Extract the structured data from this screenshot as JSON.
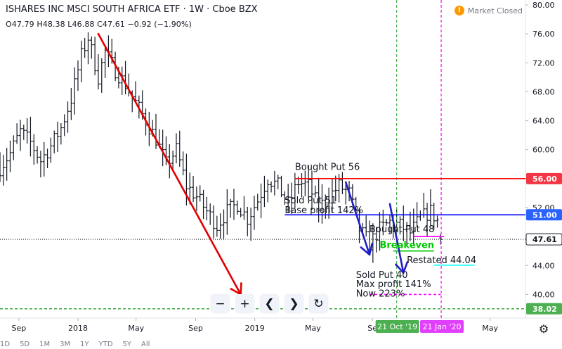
{
  "header": {
    "title": "ISHARES INC MSCI SOUTH AFRICA ETF · 1W · Cboe BZX",
    "ohlc_text": "O47.79  H48.38  L46.88  C47.61  −0.92 (−1.90%)",
    "market_status": "Market Closed",
    "market_icon": "!"
  },
  "colors": {
    "bar": "#131722",
    "red_line": "#ff0000",
    "blue_line": "#0000ff",
    "trend_red": "#e00000",
    "trend_blue": "#1e1ec8",
    "green": "#00c800",
    "cyan": "#00ffff",
    "magenta": "#ff00ff",
    "dashed_green": "#4caf50",
    "tag_red": "#f23645",
    "tag_blue": "#2962ff",
    "tag_gray": "#131722",
    "tag_green": "#4caf50",
    "tag_magenta": "#e040fb"
  },
  "toolbar": {
    "zoom_out": "−",
    "zoom_in": "+",
    "scroll_left": "❮",
    "scroll_right": "❯",
    "reset": "↻"
  },
  "settings_icon": "⚙",
  "bottom_bar": {
    "ranges": [
      "1D",
      "5D",
      "1M",
      "3M",
      "1Y",
      "YTD",
      "5Y",
      "All"
    ]
  },
  "chart_data": {
    "type": "ohlc",
    "interval": "1W",
    "y_axis": {
      "min": 38,
      "max": 80,
      "ticks": [
        80,
        76,
        72,
        68,
        64,
        60,
        56,
        52,
        48,
        44,
        40
      ]
    },
    "x_axis": {
      "start": "2017-07-24",
      "end": "2020-07-13",
      "ticks": [
        {
          "label": "Sep",
          "date": "2017-09-01"
        },
        {
          "label": "2018",
          "date": "2018-01-01"
        },
        {
          "label": "May",
          "date": "2018-05-01"
        },
        {
          "label": "Sep",
          "date": "2018-09-01"
        },
        {
          "label": "2019",
          "date": "2019-01-01"
        },
        {
          "label": "May",
          "date": "2019-05-01"
        },
        {
          "label": "Se",
          "date": "2019-09-01"
        },
        {
          "label": "May",
          "date": "2020-05-01"
        }
      ]
    },
    "last_close": 47.61,
    "series": [
      {
        "kind": "price-path",
        "points": [
          [
            "2017-07-24",
            57.5
          ],
          [
            "2017-08-14",
            59.5
          ],
          [
            "2017-09-04",
            62.5
          ],
          [
            "2017-09-25",
            61.0
          ],
          [
            "2017-10-16",
            58.5
          ],
          [
            "2017-11-06",
            60.5
          ],
          [
            "2017-11-27",
            63.0
          ],
          [
            "2017-12-18",
            67.0
          ],
          [
            "2018-01-08",
            73.0
          ],
          [
            "2018-01-22",
            75.5
          ],
          [
            "2018-02-12",
            70.0
          ],
          [
            "2018-02-26",
            73.5
          ],
          [
            "2018-03-19",
            71.0
          ],
          [
            "2018-04-09",
            69.0
          ],
          [
            "2018-04-30",
            66.5
          ],
          [
            "2018-05-21",
            64.0
          ],
          [
            "2018-06-11",
            61.5
          ],
          [
            "2018-07-02",
            58.0
          ],
          [
            "2018-07-23",
            60.0
          ],
          [
            "2018-08-13",
            55.0
          ],
          [
            "2018-09-03",
            53.5
          ],
          [
            "2018-09-24",
            51.5
          ],
          [
            "2018-10-15",
            49.5
          ],
          [
            "2018-11-05",
            51.5
          ],
          [
            "2018-11-26",
            52.5
          ],
          [
            "2018-12-17",
            50.5
          ],
          [
            "2019-01-07",
            53.0
          ],
          [
            "2019-01-28",
            56.0
          ],
          [
            "2019-02-18",
            55.0
          ],
          [
            "2019-03-11",
            52.5
          ],
          [
            "2019-04-01",
            55.5
          ],
          [
            "2019-04-22",
            55.0
          ],
          [
            "2019-05-13",
            52.0
          ],
          [
            "2019-06-03",
            53.5
          ],
          [
            "2019-06-24",
            55.0
          ],
          [
            "2019-07-15",
            54.0
          ],
          [
            "2019-08-05",
            49.0
          ],
          [
            "2019-08-26",
            47.0
          ],
          [
            "2019-09-16",
            49.0
          ],
          [
            "2019-10-07",
            50.0
          ],
          [
            "2019-10-28",
            49.5
          ],
          [
            "2019-11-18",
            48.5
          ],
          [
            "2019-12-09",
            50.5
          ],
          [
            "2019-12-30",
            51.5
          ],
          [
            "2020-01-20",
            49.5
          ]
        ]
      }
    ],
    "horizontal_lines": [
      {
        "name": "bought-put-56-line",
        "value": 56.0,
        "color": "#ff0000",
        "from": "2019-03-25",
        "to": "2020-07-13",
        "style": "solid"
      },
      {
        "name": "sold-put-51-line",
        "value": 51.0,
        "color": "#0000ff",
        "from": "2019-03-04",
        "to": "2020-07-13",
        "style": "solid"
      },
      {
        "name": "bought-put-48-line",
        "value": 48.0,
        "color": "#ff00ff",
        "from": "2019-11-25",
        "to": "2020-01-27",
        "style": "solid"
      },
      {
        "name": "breakeven-line",
        "value": 46.0,
        "color": "#00c800",
        "from": "2019-10-14",
        "to": "2020-01-06",
        "style": "solid"
      },
      {
        "name": "restated-line",
        "value": 44.04,
        "color": "#00ffff",
        "from": "2020-01-06",
        "to": "2020-03-30",
        "style": "solid"
      },
      {
        "name": "sold-put-40-line",
        "value": 40.0,
        "color": "#ff00ff",
        "from": "2019-08-26",
        "to": "2020-01-20",
        "style": "dashed"
      },
      {
        "name": "last-price-line",
        "value": 47.61,
        "color": "#131722",
        "from": "2017-07-24",
        "to": "2020-07-13",
        "style": "dotted"
      },
      {
        "name": "lower-green-dashed-line",
        "value": 38.02,
        "color": "#4caf50",
        "from": "2017-07-24",
        "to": "2020-07-13",
        "style": "dashed"
      }
    ],
    "vertical_lines": [
      {
        "name": "oct-21-2019-vline",
        "date": "2019-10-21",
        "color": "#4caf50",
        "style": "dashed"
      },
      {
        "name": "jan-21-2020-vline",
        "date": "2020-01-21",
        "color": "#ff00ff",
        "style": "dashed"
      }
    ],
    "trend_arrows": [
      {
        "name": "red-downtrend-arrow",
        "color": "#e00000",
        "from": [
          "2018-02-12",
          76.0
        ],
        "to": [
          "2018-12-03",
          40.0
        ]
      },
      {
        "name": "blue-arrow-1",
        "color": "#1e1ec8",
        "from": [
          "2019-07-08",
          55.5
        ],
        "to": [
          "2019-08-26",
          45.5
        ]
      },
      {
        "name": "blue-arrow-2",
        "color": "#1e1ec8",
        "from": [
          "2019-10-07",
          52.5
        ],
        "to": [
          "2019-11-04",
          43.0
        ]
      }
    ],
    "annotations": [
      {
        "name": "bought-put-56-label",
        "text": "Bought Put 56",
        "date": "2019-03-25",
        "value": 57.2
      },
      {
        "name": "sold-put-51-label",
        "text": "Sold Put 51",
        "date": "2019-03-04",
        "value": 52.6
      },
      {
        "name": "base-profit-label",
        "text": "Base profit 142%",
        "date": "2019-03-04",
        "value": 51.2
      },
      {
        "name": "bought-put-48-label",
        "text": "Bought Put 48",
        "date": "2019-08-26",
        "value": 48.6
      },
      {
        "name": "breakeven-label",
        "text": "Breakeven",
        "date": "2019-09-16",
        "value": 46.4,
        "color": "#00c800"
      },
      {
        "name": "restated-label",
        "text": "Restated 44.04",
        "date": "2019-11-11",
        "value": 44.3
      },
      {
        "name": "sold-put-40-label",
        "text": "Sold Put 40",
        "date": "2019-07-29",
        "value": 42.3
      },
      {
        "name": "max-profit-label",
        "text": "Max profit 141%",
        "date": "2019-07-29",
        "value": 41.0
      },
      {
        "name": "now-label",
        "text": "Now 223%",
        "date": "2019-07-29",
        "value": 39.7
      }
    ],
    "price_tags": [
      {
        "name": "price-tag-56",
        "text": "56.00",
        "value": 56.0,
        "color": "#f23645"
      },
      {
        "name": "price-tag-51",
        "text": "51.00",
        "value": 51.0,
        "color": "#2962ff"
      },
      {
        "name": "price-tag-last",
        "text": "47.61",
        "value": 47.61,
        "color": "#ffffff",
        "text_color": "#131722"
      },
      {
        "name": "price-tag-38",
        "text": "38.02",
        "value": 38.02,
        "color": "#4caf50"
      }
    ],
    "date_tags": [
      {
        "name": "date-tag-oct-21",
        "text": "21 Oct '19",
        "date": "2019-10-21",
        "color": "#4caf50"
      },
      {
        "name": "date-tag-jan-21",
        "text": "21 Jan '20",
        "date": "2020-01-21",
        "color": "#e040fb"
      }
    ]
  }
}
